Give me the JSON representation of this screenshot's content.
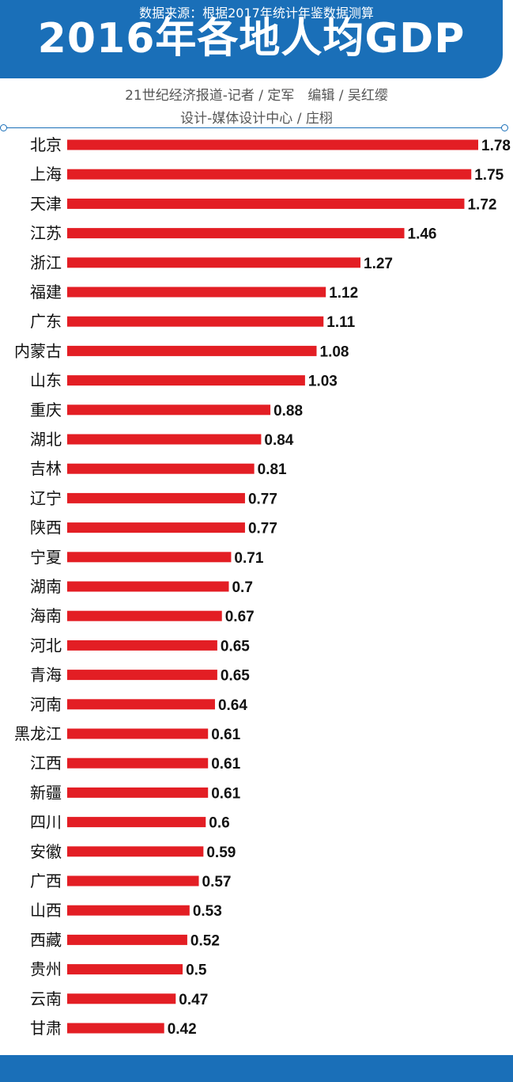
{
  "header": {
    "title": "2016年各地人均GDP",
    "credit_line1": "21世纪经济报道-记者 / 定军　编辑 / 吴红缨",
    "credit_line2": "设计-媒体设计中心 / 庄栩"
  },
  "footer": {
    "source": "数据来源：根据2017年统计年鉴数据测算"
  },
  "colors": {
    "header_blue": "#1a6fb8",
    "bar_red": "#e31e24"
  },
  "chart_data": {
    "type": "bar",
    "orientation": "horizontal",
    "title": "2016年各地人均GDP",
    "xlim": [
      0,
      1.8
    ],
    "grid": false,
    "legend": "none",
    "categories": [
      "北京",
      "上海",
      "天津",
      "江苏",
      "浙江",
      "福建",
      "广东",
      "内蒙古",
      "山东",
      "重庆",
      "湖北",
      "吉林",
      "辽宁",
      "陕西",
      "宁夏",
      "湖南",
      "海南",
      "河北",
      "青海",
      "河南",
      "黑龙江",
      "江西",
      "新疆",
      "四川",
      "安徽",
      "广西",
      "山西",
      "西藏",
      "贵州",
      "云南",
      "甘肃"
    ],
    "values": [
      1.78,
      1.75,
      1.72,
      1.46,
      1.27,
      1.12,
      1.11,
      1.08,
      1.03,
      0.88,
      0.84,
      0.81,
      0.77,
      0.77,
      0.71,
      0.7,
      0.67,
      0.65,
      0.65,
      0.64,
      0.61,
      0.61,
      0.61,
      0.6,
      0.59,
      0.57,
      0.53,
      0.52,
      0.5,
      0.47,
      0.42
    ],
    "data_labels": [
      "1.78",
      "1.75",
      "1.72",
      "1.46",
      "1.27",
      "1.12",
      "1.11",
      "1.08",
      "1.03",
      "0.88",
      "0.84",
      "0.81",
      "0.77",
      "0.77",
      "0.71",
      "0.7",
      "0.67",
      "0.65",
      "0.65",
      "0.64",
      "0.61",
      "0.61",
      "0.61",
      "0.6",
      "0.59",
      "0.57",
      "0.53",
      "0.52",
      "0.5",
      "0.47",
      "0.42"
    ]
  }
}
